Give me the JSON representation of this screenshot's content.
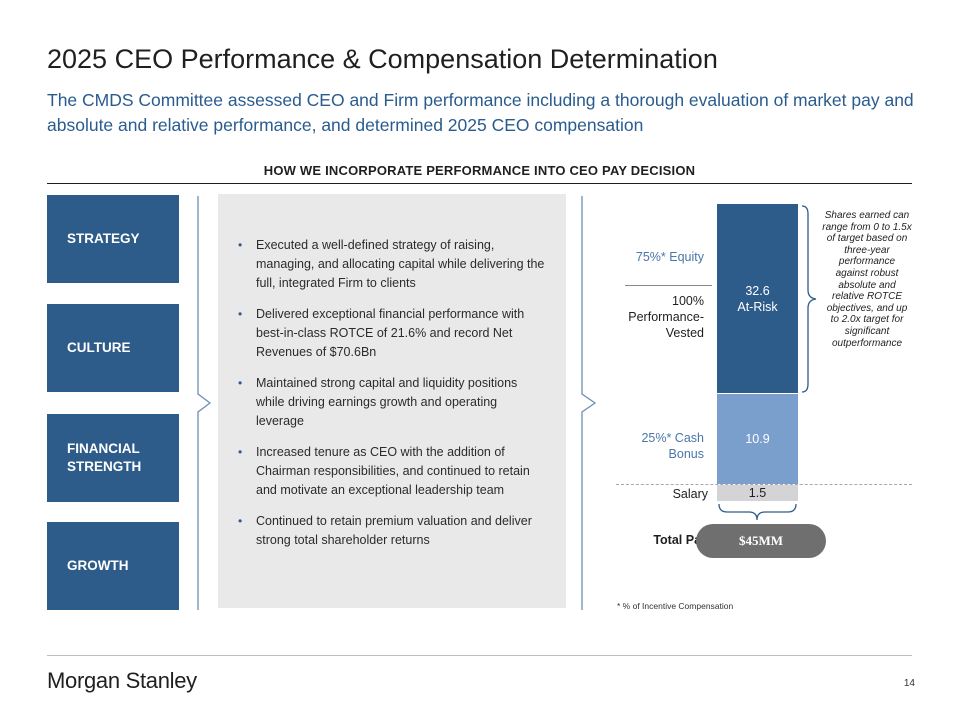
{
  "header": {
    "title": "2025 CEO Performance & Compensation Determination",
    "subtitle": "The CMDS Committee assessed CEO and Firm performance including a thorough evaluation of market pay and absolute and relative performance, and determined 2025 CEO compensation"
  },
  "section": {
    "heading": "HOW WE INCORPORATE PERFORMANCE INTO CEO PAY DECISION"
  },
  "pillars": [
    "STRATEGY",
    "CULTURE",
    "FINANCIAL STRENGTH",
    "GROWTH"
  ],
  "bullets": [
    "Executed a well-defined strategy of raising, managing, and allocating capital while delivering the full, integrated Firm to clients",
    "Delivered exceptional financial performance with best-in-class ROTCE of 21.6% and record Net Revenues of $70.6Bn",
    "Maintained strong capital and liquidity positions while driving earnings growth and operating leverage",
    "Increased tenure as CEO with the addition of Chairman responsibilities, and continued to retain and motivate an exceptional leadership team",
    "Continued to retain premium valuation and deliver strong total shareholder returns"
  ],
  "chart_data": {
    "type": "bar",
    "title": "",
    "categories": [
      "Total Pay"
    ],
    "unit": "$MM",
    "series": [
      {
        "name": "Salary",
        "values": [
          1.5
        ],
        "label": "1.5",
        "color": "#d4d4d6"
      },
      {
        "name": "25%* Cash Bonus",
        "values": [
          10.9
        ],
        "label": "10.9",
        "color": "#7a9fcd"
      },
      {
        "name": "75%* Equity",
        "values": [
          32.6
        ],
        "label": "32.6",
        "sublabel": "At-Risk",
        "color": "#2e5c8a"
      }
    ],
    "labels": {
      "equity": "75%* Equity",
      "performance_vested": "100% Performance-Vested",
      "cash_bonus": "25%* Cash Bonus",
      "salary": "Salary",
      "total_label": "Total Pay",
      "total_value": "$45MM"
    },
    "annotation": "Shares earned can range from 0 to 1.5x of target based on three-year performance against robust absolute and relative ROTCE objectives, and up to 2.0x target for significant outperformance",
    "footnote": "* % of Incentive Compensation"
  },
  "footer": {
    "logo": "Morgan Stanley",
    "page_number": "14"
  },
  "colors": {
    "primary_blue": "#2e5c8a",
    "light_blue": "#7a9fcd",
    "subtitle_blue": "#2a5b8f",
    "panel_gray": "#e9e9ea"
  }
}
